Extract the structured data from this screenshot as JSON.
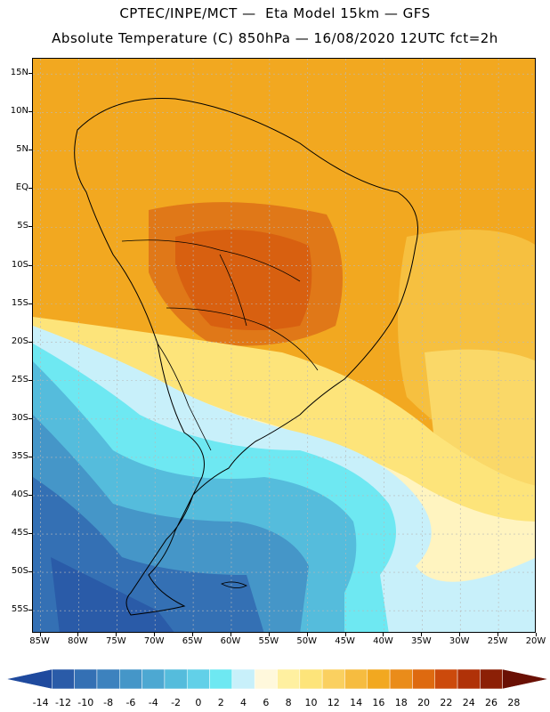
{
  "header": {
    "line1": "CPTEC/INPE/MCT —  Eta Model 15km — GFS",
    "line2": "Absolute Temperature (C) 850hPa — 16/08/2020 12UTC fct=2h"
  },
  "map": {
    "region": "South America",
    "variable": "Absolute Temperature (C) 850hPa",
    "lat_range": [
      -58,
      17
    ],
    "lon_range": [
      -86,
      -20
    ],
    "lat_labels": [
      "15N",
      "10N",
      "5N",
      "EQ",
      "5S",
      "10S",
      "15S",
      "20S",
      "25S",
      "30S",
      "35S",
      "40S",
      "45S",
      "50S",
      "55S"
    ],
    "lat_values": [
      15,
      10,
      5,
      0,
      -5,
      -10,
      -15,
      -20,
      -25,
      -30,
      -35,
      -40,
      -45,
      -50,
      -55
    ],
    "lon_labels": [
      "85W",
      "80W",
      "75W",
      "70W",
      "65W",
      "60W",
      "55W",
      "50W",
      "45W",
      "40W",
      "35W",
      "30W",
      "25W",
      "20W"
    ],
    "lon_values": [
      -85,
      -80,
      -75,
      -70,
      -65,
      -60,
      -55,
      -50,
      -45,
      -40,
      -35,
      -30,
      -25,
      -20
    ]
  },
  "colorbar": {
    "labels": [
      "-14",
      "-12",
      "-10",
      "-8",
      "-6",
      "-4",
      "-2",
      "0",
      "2",
      "4",
      "6",
      "8",
      "10",
      "12",
      "14",
      "16",
      "18",
      "20",
      "22",
      "24",
      "26",
      "28"
    ],
    "colors": [
      "#1f4a9e",
      "#2a5ba8",
      "#3470b4",
      "#3d82be",
      "#4596c8",
      "#4da8d2",
      "#55bcdc",
      "#62d0e8",
      "#6ee8f2",
      "#c8f0fa",
      "#fff8dc",
      "#fff0a0",
      "#fde47a",
      "#fad060",
      "#f6bc40",
      "#f2a820",
      "#ea8c1a",
      "#de6a10",
      "#cc4a0c",
      "#b03208",
      "#8c2006",
      "#6a1004"
    ]
  }
}
